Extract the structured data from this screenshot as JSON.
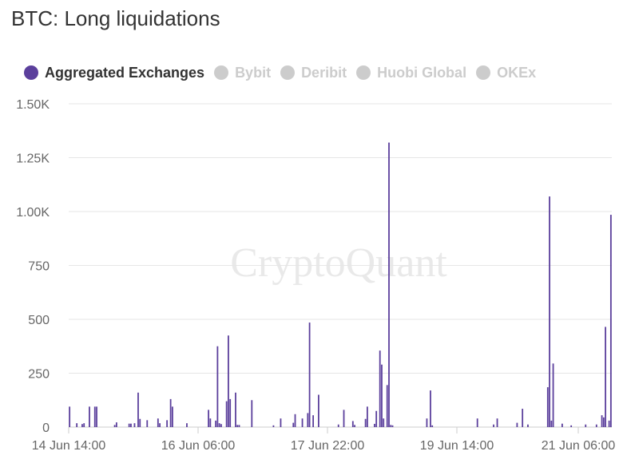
{
  "title": "BTC: Long liquidations",
  "watermark": "CryptoQuant",
  "legend": [
    {
      "label": "Aggregated Exchanges",
      "active": true
    },
    {
      "label": "Bybit",
      "active": false
    },
    {
      "label": "Deribit",
      "active": false
    },
    {
      "label": "Huobi Global",
      "active": false
    },
    {
      "label": "OKEx",
      "active": false
    }
  ],
  "colors": {
    "series": "#5b3f9c",
    "inactive": "#cccccc",
    "active_text": "#333333",
    "inactive_text": "#cccccc",
    "grid": "#e6e6e6"
  },
  "chart_data": {
    "type": "bar",
    "series": [
      {
        "name": "Aggregated Exchanges",
        "values": [
          95,
          0,
          0,
          0,
          18,
          0,
          0,
          14,
          18,
          0,
          0,
          95,
          0,
          0,
          95,
          95,
          0,
          0,
          0,
          0,
          0,
          0,
          0,
          0,
          0,
          10,
          22,
          0,
          0,
          0,
          0,
          0,
          0,
          16,
          16,
          0,
          18,
          0,
          160,
          38,
          0,
          0,
          0,
          32,
          0,
          0,
          0,
          0,
          0,
          40,
          18,
          0,
          0,
          0,
          32,
          0,
          130,
          95,
          0,
          0,
          0,
          0,
          0,
          0,
          0,
          18,
          0,
          0,
          0,
          0,
          0,
          0,
          0,
          0,
          0,
          0,
          0,
          80,
          40,
          0,
          0,
          30,
          375,
          18,
          14,
          0,
          0,
          120,
          425,
          130,
          0,
          0,
          160,
          10,
          10,
          0,
          0,
          0,
          0,
          0,
          0,
          125,
          0,
          0,
          0,
          0,
          0,
          0,
          0,
          0,
          0,
          0,
          0,
          8,
          0,
          0,
          0,
          40,
          0,
          0,
          0,
          0,
          0,
          0,
          20,
          60,
          0,
          0,
          0,
          40,
          0,
          0,
          65,
          485,
          0,
          55,
          0,
          0,
          150,
          0,
          0,
          0,
          0,
          0,
          0,
          0,
          0,
          0,
          0,
          12,
          0,
          0,
          80,
          0,
          0,
          0,
          0,
          28,
          10,
          0,
          0,
          0,
          0,
          0,
          38,
          95,
          0,
          0,
          0,
          15,
          75,
          0,
          355,
          290,
          40,
          0,
          195,
          1320,
          10,
          8,
          0,
          0,
          0,
          0,
          0,
          0,
          0,
          0,
          0,
          0,
          0,
          0,
          0,
          0,
          0,
          0,
          0,
          0,
          40,
          0,
          170,
          8,
          0,
          0,
          0,
          0,
          0,
          0,
          0,
          0,
          0,
          0,
          0,
          0,
          0,
          0,
          0,
          0,
          0,
          0,
          0,
          0,
          0,
          0,
          0,
          0,
          40,
          0,
          0,
          0,
          0,
          0,
          0,
          0,
          0,
          12,
          0,
          40,
          0,
          0,
          0,
          0,
          0,
          0,
          0,
          0,
          0,
          0,
          20,
          0,
          0,
          85,
          0,
          0,
          12,
          0,
          0,
          0,
          0,
          0,
          0,
          0,
          0,
          0,
          0,
          185,
          1070,
          30,
          295,
          0,
          0,
          0,
          0,
          16,
          0,
          0,
          0,
          0,
          8,
          0,
          0,
          0,
          0,
          0,
          0,
          0,
          12,
          0,
          0,
          0,
          0,
          0,
          12,
          0,
          0,
          55,
          45,
          465,
          0,
          30,
          985
        ]
      }
    ],
    "x_ticks": [
      "14 Jun 14:00",
      "16 Jun 06:00",
      "17 Jun 22:00",
      "19 Jun 14:00",
      "21 Jun 06:00"
    ],
    "y_ticks": [
      "0",
      "250",
      "500",
      "750",
      "1.00K",
      "1.25K",
      "1.50K"
    ],
    "ylim": [
      0,
      1500
    ],
    "grid": true,
    "legend_position": "top-left"
  }
}
